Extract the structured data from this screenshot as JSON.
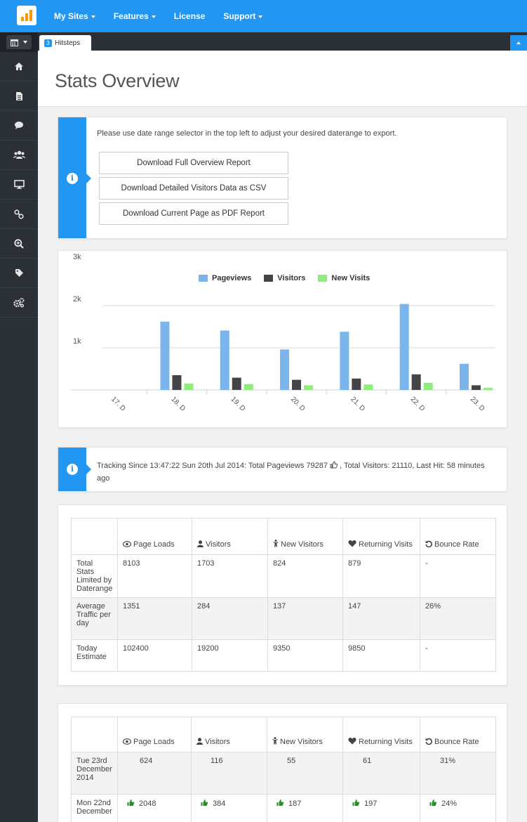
{
  "navbar": {
    "items": [
      "My Sites",
      "Features",
      "License",
      "Support"
    ]
  },
  "tab": {
    "badge": "3",
    "label": "Hitsteps"
  },
  "page": {
    "title": "Stats Overview"
  },
  "export": {
    "note": "Please use date range selector in the top left to adjust your desired daterange to export.",
    "buttons": [
      "Download Full Overview Report",
      "Download Detailed Visitors Data as CSV",
      "Download Current Page as PDF Report"
    ]
  },
  "chart_data": {
    "type": "bar",
    "categories": [
      "17. D",
      "18. D",
      "19. D",
      "20. D",
      "21. D",
      "22. D",
      "23. D"
    ],
    "series": [
      {
        "name": "Pageviews",
        "color": "#7cb5ec",
        "values": [
          0,
          1620,
          1410,
          960,
          1380,
          2040,
          620
        ]
      },
      {
        "name": "Visitors",
        "color": "#434348",
        "values": [
          0,
          350,
          290,
          240,
          270,
          370,
          110
        ]
      },
      {
        "name": "New Visits",
        "color": "#90ed7d",
        "values": [
          0,
          150,
          140,
          110,
          130,
          170,
          50
        ]
      }
    ],
    "yticks": [
      "1k",
      "2k",
      "3k"
    ],
    "ylim": [
      0,
      3000
    ],
    "legend": "top-center",
    "grid": true
  },
  "tracking": {
    "text": "Tracking Since 13:47:22 Sun 20th Jul 2014: Total Pageviews 79287",
    "text2": ", Total Visitors: 21110, Last Hit: 58 minutes ago"
  },
  "table1": {
    "headers": [
      "Page Loads",
      "Visitors",
      "New Visitors",
      "Returning Visits",
      "Bounce Rate"
    ],
    "rows": [
      {
        "label": "Total Stats Limited by Daterange",
        "cells": [
          "8103",
          "1703",
          "824",
          "879",
          "-"
        ]
      },
      {
        "label": "Average Traffic per day",
        "cells": [
          "1351",
          "284",
          "137",
          "147",
          "26%"
        ]
      },
      {
        "label": "Today Estimate",
        "cells": [
          "102400",
          "19200",
          "9350",
          "9850",
          "-"
        ]
      }
    ]
  },
  "table2": {
    "headers": [
      "Page Loads",
      "Visitors",
      "New Visitors",
      "Returning Visits",
      "Bounce Rate"
    ],
    "rows": [
      {
        "label": "Tue 23rd December 2014",
        "cells": [
          "624",
          "116",
          "55",
          "61",
          "31%"
        ]
      },
      {
        "label": "Mon 22nd December",
        "cells": [
          "2048",
          "384",
          "187",
          "197",
          "24%"
        ]
      }
    ]
  }
}
